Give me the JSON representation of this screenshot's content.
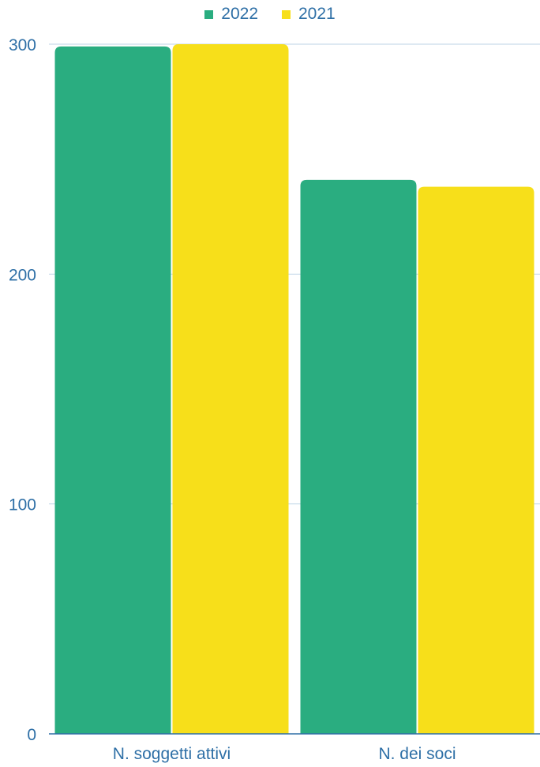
{
  "chart_data": {
    "type": "bar",
    "categories": [
      "N. soggetti attivi",
      "N. dei soci"
    ],
    "series": [
      {
        "name": "2022",
        "color": "#2aad80",
        "values": [
          299,
          241
        ]
      },
      {
        "name": "2021",
        "color": "#f7df1a",
        "values": [
          300,
          238
        ]
      }
    ],
    "yticks": [
      "0",
      "100",
      "200",
      "300"
    ],
    "ylim": [
      0,
      300
    ],
    "legend_position": "top-center",
    "grid": true
  }
}
